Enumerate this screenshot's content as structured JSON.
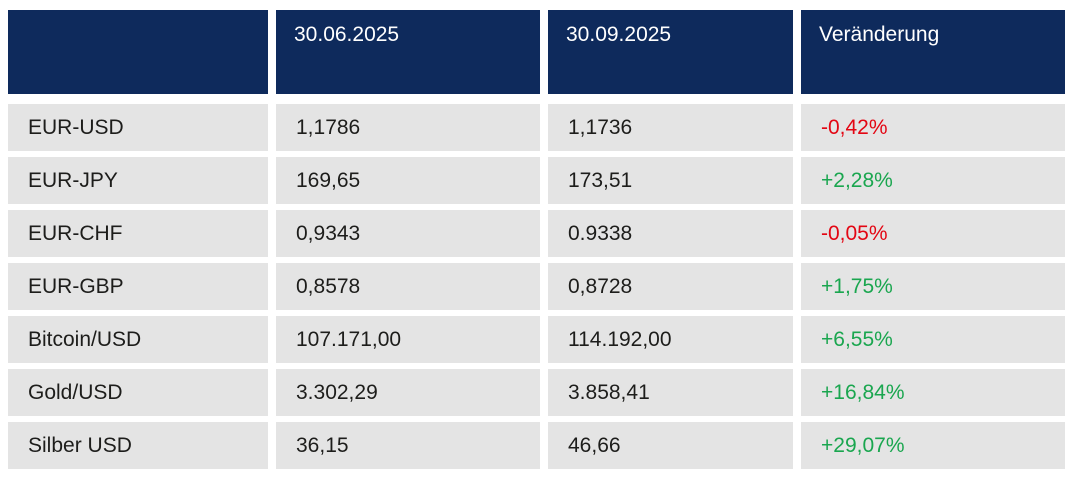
{
  "colors": {
    "header_bg": "#0e2a5c",
    "header_text": "#ffffff",
    "row_bg": "#e4e4e4",
    "text": "#1d1d1b",
    "negative": "#e30613",
    "positive": "#1aa64f"
  },
  "chart_data": {
    "type": "table",
    "columns": [
      "",
      "30.06.2025",
      "30.09.2025",
      "Veränderung"
    ],
    "rows": [
      {
        "label": "EUR-USD",
        "value_30_06": "1,1786",
        "value_30_09": "1,1736",
        "change": "-0,42%",
        "direction": "down"
      },
      {
        "label": "EUR-JPY",
        "value_30_06": "169,65",
        "value_30_09": "173,51",
        "change": "+2,28%",
        "direction": "up"
      },
      {
        "label": "EUR-CHF",
        "value_30_06": "0,9343",
        "value_30_09": "0.9338",
        "change": "-0,05%",
        "direction": "down"
      },
      {
        "label": "EUR-GBP",
        "value_30_06": "0,8578",
        "value_30_09": "0,8728",
        "change": "+1,75%",
        "direction": "up"
      },
      {
        "label": "Bitcoin/USD",
        "value_30_06": "107.171,00",
        "value_30_09": "114.192,00",
        "change": "+6,55%",
        "direction": "up"
      },
      {
        "label": "Gold/USD",
        "value_30_06": "3.302,29",
        "value_30_09": "3.858,41",
        "change": "+16,84%",
        "direction": "up"
      },
      {
        "label": "Silber USD",
        "value_30_06": "36,15",
        "value_30_09": "46,66",
        "change": "+29,07%",
        "direction": "up"
      }
    ]
  }
}
